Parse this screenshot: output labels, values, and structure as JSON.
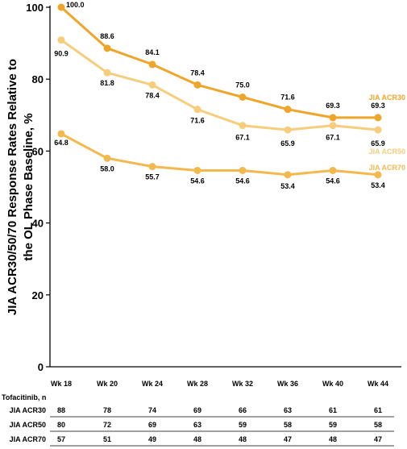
{
  "chart_data": {
    "type": "line",
    "ylabel_line1": "JIA ACR30/50/70 Response Rates Relative to",
    "ylabel_line2": "the OL Phase Baseline, %",
    "xlabel": "",
    "ylim": [
      0,
      100
    ],
    "yticks": [
      0,
      20,
      40,
      60,
      80,
      100
    ],
    "categories": [
      "Wk 18",
      "Wk 20",
      "Wk 24",
      "Wk 28",
      "Wk 32",
      "Wk 36",
      "Wk 40",
      "Wk 44"
    ],
    "grid": false,
    "series": [
      {
        "name": "JIA ACR30",
        "color": "#EEA52A",
        "values": [
          100.0,
          88.6,
          84.1,
          78.4,
          75.0,
          71.6,
          69.3,
          69.3
        ]
      },
      {
        "name": "JIA ACR50",
        "color": "#F6CD7C",
        "values": [
          90.9,
          81.8,
          78.4,
          71.6,
          67.1,
          65.9,
          67.1,
          65.9
        ]
      },
      {
        "name": "JIA ACR70",
        "color": "#F3B94E",
        "values": [
          64.8,
          58.0,
          55.7,
          54.6,
          54.6,
          53.4,
          54.6,
          53.4
        ]
      }
    ],
    "table": {
      "header": "Tofacitinib, n",
      "rows": [
        {
          "label": "JIA ACR30",
          "values": [
            "88",
            "78",
            "74",
            "69",
            "66",
            "63",
            "61",
            "61"
          ]
        },
        {
          "label": "JIA ACR50",
          "values": [
            "80",
            "72",
            "69",
            "63",
            "59",
            "58",
            "59",
            "58"
          ]
        },
        {
          "label": "JIA ACR70",
          "values": [
            "57",
            "51",
            "49",
            "48",
            "48",
            "47",
            "48",
            "47"
          ]
        }
      ]
    }
  }
}
